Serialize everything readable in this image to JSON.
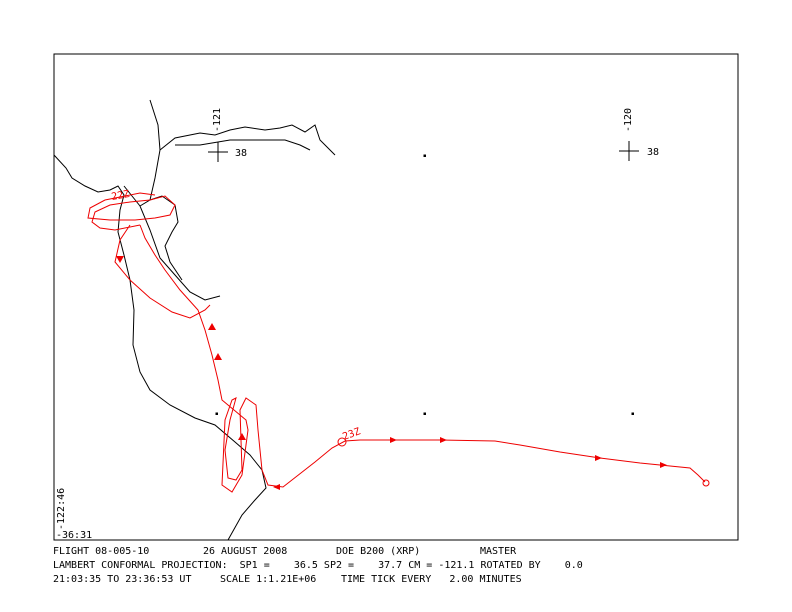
{
  "map": {
    "grid_labels": {
      "lon_left": "-121",
      "lat_left": "38",
      "lon_right": "-120",
      "lat_right": "38",
      "corner_lon": "-122:46",
      "corner_lat": "-36:31"
    },
    "time_marks": [
      "22Z",
      "23Z"
    ],
    "footer": {
      "line1": [
        "FLIGHT 08-005-10",
        "26 AUGUST 2008",
        "DOE B200 (XRP)",
        "MASTER"
      ],
      "line2": [
        "LAMBERT CONFORMAL PROJECTION:  SP1 =    36.5 SP2 =    37.7 CM = -121.1 ROTATED BY    0.0"
      ],
      "line3": [
        "21:03:35 TO 23:36:53 UT",
        "SCALE 1:1.21E+06",
        "TIME TICK EVERY   2.00 MINUTES"
      ]
    }
  }
}
